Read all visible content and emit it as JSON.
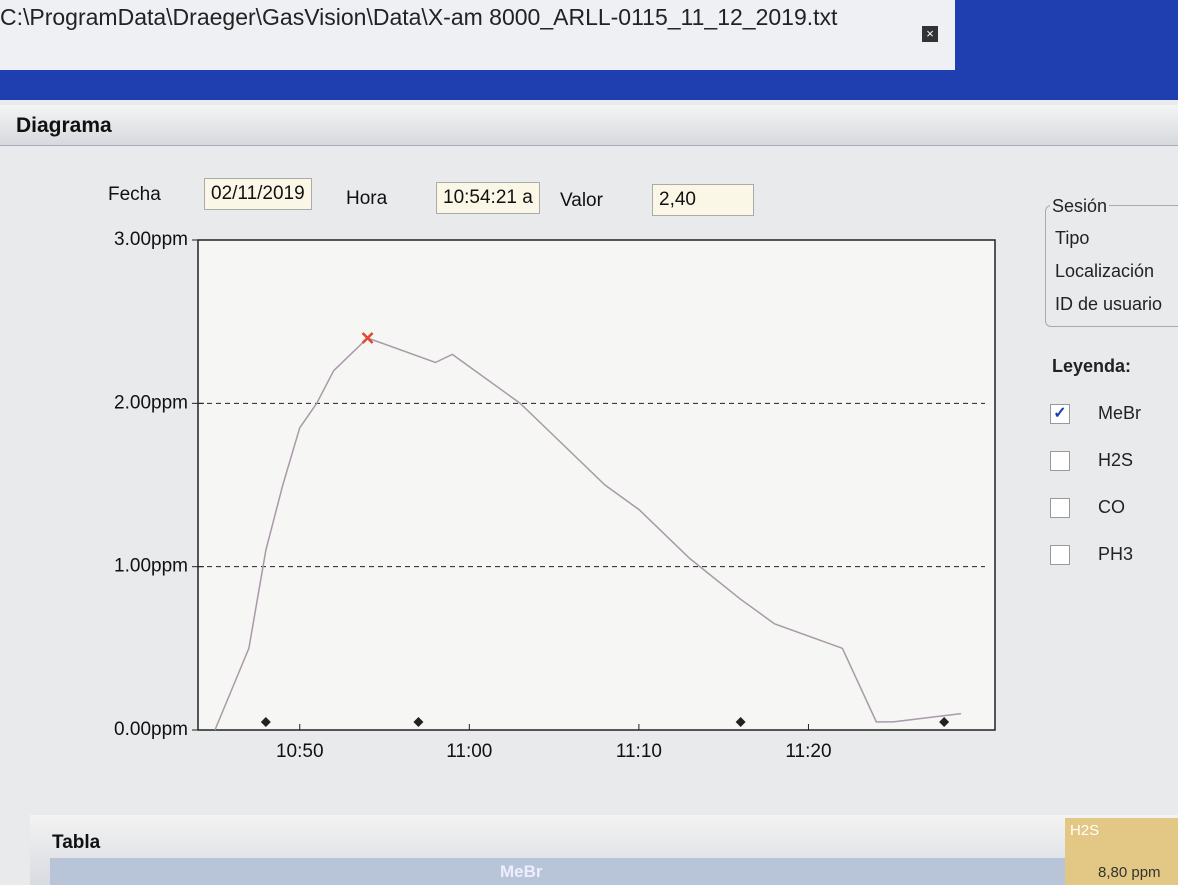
{
  "window": {
    "path": "C:\\ProgramData\\Draeger\\GasVision\\Data\\X-am 8000_ARLL-0115_11_12_2019.txt"
  },
  "section": {
    "title": "Diagrama"
  },
  "fields": [
    {
      "label": "Fecha",
      "value": "02/11/2019"
    },
    {
      "label": "Hora",
      "value": "10:54:21 a"
    },
    {
      "label": "Valor",
      "value": "2,40"
    }
  ],
  "session": {
    "title": "Sesión",
    "rows": [
      "Tipo",
      "Localización",
      "ID de usuario"
    ]
  },
  "legend": {
    "title": "Leyenda:",
    "items": [
      {
        "label": "MeBr",
        "checked": true
      },
      {
        "label": "H2S",
        "checked": false
      },
      {
        "label": "CO",
        "checked": false
      },
      {
        "label": "PH3",
        "checked": false
      }
    ]
  },
  "table": {
    "title": "Tabla",
    "columns": [
      "MeBr",
      "H2S"
    ],
    "cell": "8,80 ppm"
  },
  "chart_data": {
    "type": "line",
    "x": [
      "10:45",
      "10:47",
      "10:48",
      "10:49",
      "10:50",
      "10:51",
      "10:52",
      "10:54",
      "10:58",
      "10:59",
      "11:01",
      "11:03",
      "11:05",
      "11:08",
      "11:10",
      "11:13",
      "11:16",
      "11:18",
      "11:22",
      "11:24",
      "11:25",
      "11:29"
    ],
    "series": [
      {
        "name": "MeBr",
        "color": "#a89aa8",
        "values": [
          0.0,
          0.5,
          1.1,
          1.5,
          1.85,
          2.0,
          2.2,
          2.4,
          2.25,
          2.3,
          2.15,
          2.0,
          1.8,
          1.5,
          1.35,
          1.05,
          0.8,
          0.65,
          0.5,
          0.05,
          0.05,
          0.1
        ]
      }
    ],
    "selected_index": 7,
    "selected_color": "#e0492e",
    "events_x": [
      "10:48",
      "10:57",
      "11:16",
      "11:28"
    ],
    "xlim": [
      "10:44",
      "11:31"
    ],
    "xticks": [
      "10:50",
      "11:00",
      "11:10",
      "11:20"
    ],
    "ylim": [
      0,
      3
    ],
    "yticks": [
      {
        "value": 0,
        "label": "0.00ppm"
      },
      {
        "value": 1,
        "label": "1.00ppm"
      },
      {
        "value": 2,
        "label": "2.00ppm"
      },
      {
        "value": 3,
        "label": "3.00ppm"
      }
    ],
    "grid": true
  }
}
